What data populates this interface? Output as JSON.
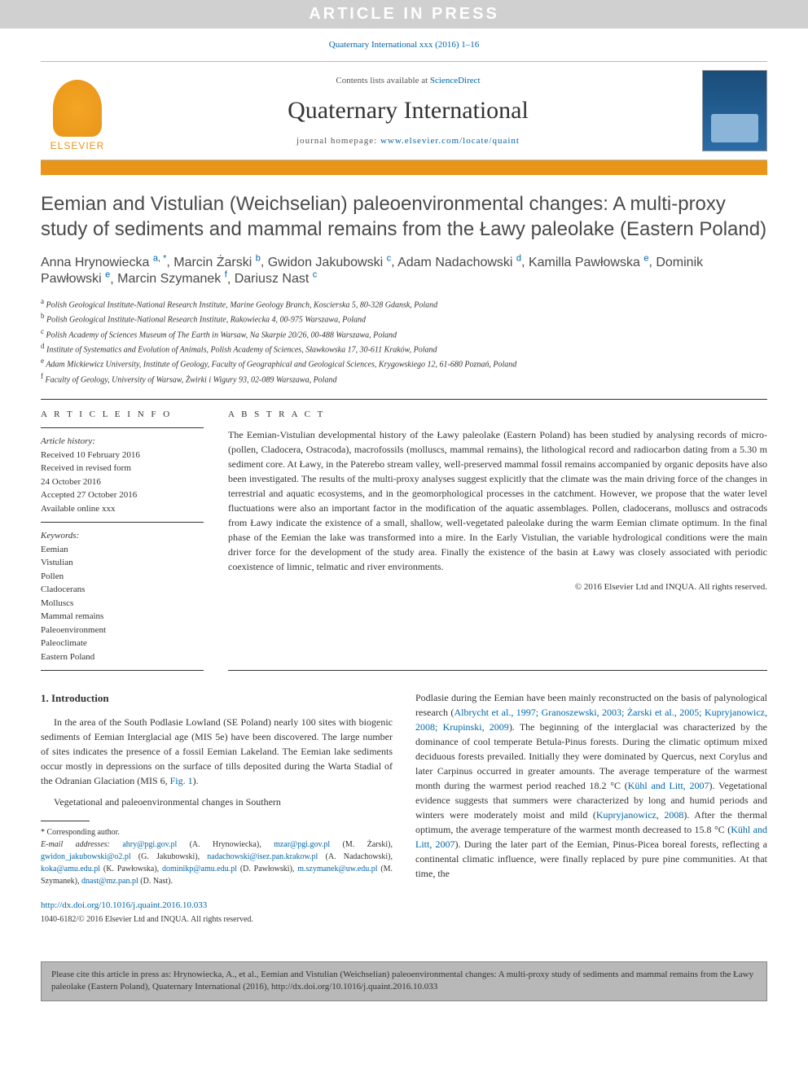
{
  "banner": {
    "text": "ARTICLE IN PRESS"
  },
  "topCite": "Quaternary International xxx (2016) 1–16",
  "header": {
    "contentsPrefix": "Contents lists available at ",
    "scienceDirect": "ScienceDirect",
    "journalTitle": "Quaternary International",
    "homepagePrefix": "journal homepage: ",
    "homepageUrl": "www.elsevier.com/locate/quaint",
    "elsevier": "ELSEVIER"
  },
  "article": {
    "title": "Eemian and Vistulian (Weichselian) paleoenvironmental changes: A multi-proxy study of sediments and mammal remains from the Ławy paleolake (Eastern Poland)",
    "authors": [
      {
        "name": "Anna Hrynowiecka",
        "sup": "a, *"
      },
      {
        "name": "Marcin Żarski",
        "sup": "b"
      },
      {
        "name": "Gwidon Jakubowski",
        "sup": "c"
      },
      {
        "name": "Adam Nadachowski",
        "sup": "d"
      },
      {
        "name": "Kamilla Pawłowska",
        "sup": "e"
      },
      {
        "name": "Dominik Pawłowski",
        "sup": "e"
      },
      {
        "name": "Marcin Szymanek",
        "sup": "f"
      },
      {
        "name": "Dariusz Nast",
        "sup": "c"
      }
    ],
    "affiliations": [
      {
        "sup": "a",
        "text": "Polish Geological Institute-National Research Institute, Marine Geology Branch, Koscierska 5, 80-328 Gdansk, Poland"
      },
      {
        "sup": "b",
        "text": "Polish Geological Institute-National Research Institute, Rakowiecka 4, 00-975 Warszawa, Poland"
      },
      {
        "sup": "c",
        "text": "Polish Academy of Sciences Museum of The Earth in Warsaw, Na Skarpie 20/26, 00-488 Warszawa, Poland"
      },
      {
        "sup": "d",
        "text": "Institute of Systematics and Evolution of Animals, Polish Academy of Sciences, Sławkowska 17, 30-611 Kraków, Poland"
      },
      {
        "sup": "e",
        "text": "Adam Mickiewicz University, Institute of Geology, Faculty of Geographical and Geological Sciences, Krygowskiego 12, 61-680 Poznań, Poland"
      },
      {
        "sup": "f",
        "text": "Faculty of Geology, University of Warsaw, Żwirki i Wigury 93, 02-089 Warszawa, Poland"
      }
    ]
  },
  "info": {
    "labelInfo": "A R T I C L E   I N F O",
    "labelAbstract": "A B S T R A C T",
    "historyLabel": "Article history:",
    "history": [
      "Received 10 February 2016",
      "Received in revised form",
      "24 October 2016",
      "Accepted 27 October 2016",
      "Available online xxx"
    ],
    "keywordsLabel": "Keywords:",
    "keywords": [
      "Eemian",
      "Vistulian",
      "Pollen",
      "Cladocerans",
      "Molluscs",
      "Mammal remains",
      "Paleoenvironment",
      "Paleoclimate",
      "Eastern Poland"
    ]
  },
  "abstract": "The Eemian-Vistulian developmental history of the Ławy paleolake (Eastern Poland) has been studied by analysing records of micro- (pollen, Cladocera, Ostracoda), macrofossils (molluscs, mammal remains), the lithological record and radiocarbon dating from a 5.30 m sediment core. At Ławy, in the Paterebo stream valley, well-preserved mammal fossil remains accompanied by organic deposits have also been investigated. The results of the multi-proxy analyses suggest explicitly that the climate was the main driving force of the changes in terrestrial and aquatic ecosystems, and in the geomorphological processes in the catchment. However, we propose that the water level fluctuations were also an important factor in the modification of the aquatic assemblages. Pollen, cladocerans, molluscs and ostracods from Ławy indicate the existence of a small, shallow, well-vegetated paleolake during the warm Eemian climate optimum. In the final phase of the Eemian the lake was transformed into a mire. In the Early Vistulian, the variable hydrological conditions were the main driver force for the development of the study area. Finally the existence of the basin at Ławy was closely associated with periodic coexistence of limnic, telmatic and river environments.",
  "copyright": "© 2016 Elsevier Ltd and INQUA. All rights reserved.",
  "bodyLeft": {
    "heading": "1. Introduction",
    "p1": "In the area of the South Podlasie Lowland (SE Poland) nearly 100 sites with biogenic sediments of Eemian Interglacial age (MIS 5e) have been discovered. The large number of sites indicates the presence of a fossil Eemian Lakeland. The Eemian lake sediments occur mostly in depressions on the surface of tills deposited during the Warta Stadial of the Odranian Glaciation (MIS 6, ",
    "p1link": "Fig. 1",
    "p1end": ").",
    "p2": "Vegetational and paleoenvironmental changes in Southern"
  },
  "bodyRight": {
    "p1a": "Podlasie during the Eemian have been mainly reconstructed on the basis of palynological research (",
    "p1refs1": "Albrycht et al., 1997; Granoszewski, 2003; Żarski et al., 2005; Kupryjanowicz, 2008; Krupinski, 2009",
    "p1b": "). The beginning of the interglacial was characterized by the dominance of cool temperate Betula-Pinus forests. During the climatic optimum mixed deciduous forests prevailed. Initially they were dominated by Quercus, next Corylus and later Carpinus occurred in greater amounts. The average temperature of the warmest month during the warmest period reached 18.2 °C (",
    "p1refs2": "Kühl and Litt, 2007",
    "p1c": "). Vegetational evidence suggests that summers were characterized by long and humid periods and winters were moderately moist and mild (",
    "p1refs3": "Kupryjanowicz, 2008",
    "p1d": "). After the thermal optimum, the average temperature of the warmest month decreased to 15.8 °C (",
    "p1refs4": "Kühl and Litt, 2007",
    "p1e": "). During the later part of the Eemian, Pinus-Picea boreal forests, reflecting a continental climatic influence, were finally replaced by pure pine communities. At that time, the"
  },
  "footnotes": {
    "corrLabel": "* Corresponding author.",
    "emailLabel": "E-mail addresses:",
    "emails": [
      {
        "email": "ahry@pgi.gov.pl",
        "who": "(A. Hrynowiecka)"
      },
      {
        "email": "mzar@pgi.gov.pl",
        "who": "(M. Żarski)"
      },
      {
        "email": "gwidon_jakubowski@o2.pl",
        "who": "(G. Jakubowski)"
      },
      {
        "email": "nadachowski@isez.pan.krakow.pl",
        "who": "(A. Nadachowski)"
      },
      {
        "email": "koka@amu.edu.pl",
        "who": "(K. Pawłowska)"
      },
      {
        "email": "dominikp@amu.edu.pl",
        "who": "(D. Pawłowski)"
      },
      {
        "email": "m.szymanek@uw.edu.pl",
        "who": "(M. Szymanek)"
      },
      {
        "email": "dnast@mz.pan.pl",
        "who": "(D. Nast)"
      }
    ]
  },
  "doi": {
    "url": "http://dx.doi.org/10.1016/j.quaint.2016.10.033",
    "issn": "1040-6182/© 2016 Elsevier Ltd and INQUA. All rights reserved."
  },
  "citeBox": "Please cite this article in press as: Hrynowiecka, A., et al., Eemian and Vistulian (Weichselian) paleoenvironmental changes: A multi-proxy study of sediments and mammal remains from the Ławy paleolake (Eastern Poland), Quaternary International (2016), http://dx.doi.org/10.1016/j.quaint.2016.10.033"
}
